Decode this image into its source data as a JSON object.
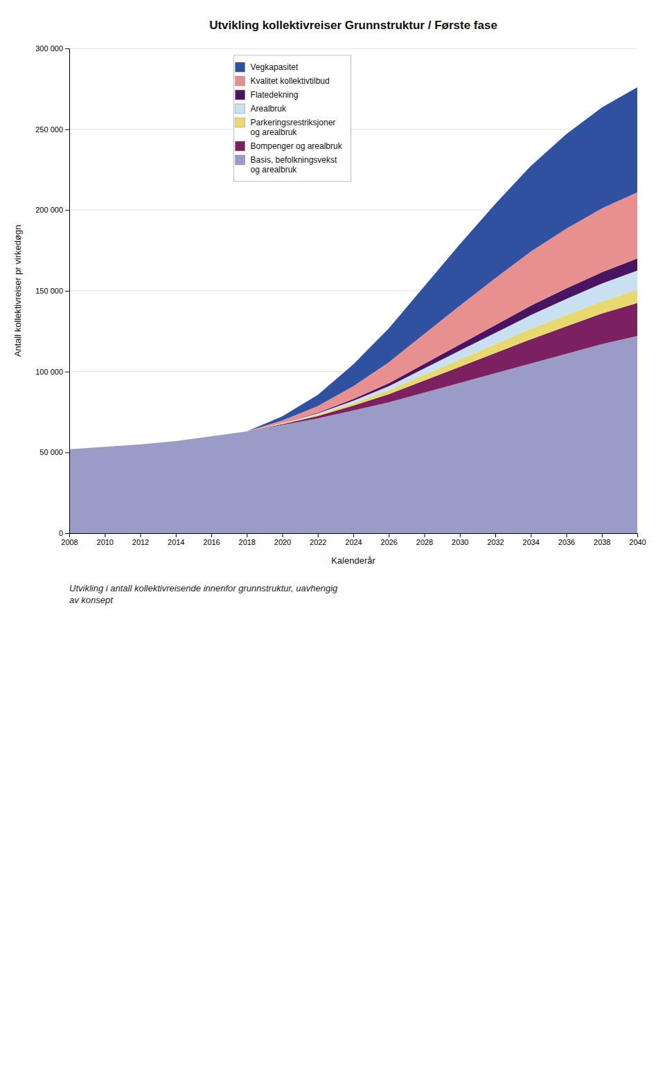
{
  "chart_data": {
    "type": "area",
    "stacked": true,
    "title": "Utvikling kollektivreiser Grunnstruktur / Første fase",
    "x_label": "Kalenderår",
    "y_label": "Antall kollektivreiser pr virkedøgn",
    "annotations": [
      "Utvikling i antall kollektivreisende innenfor grunnstruktur, uavhengig\nav konsept"
    ],
    "x": [
      2008,
      2010,
      2012,
      2014,
      2016,
      2018,
      2020,
      2022,
      2024,
      2026,
      2028,
      2030,
      2032,
      2034,
      2036,
      2038,
      2040
    ],
    "series": [
      {
        "name": "Basis, befolkningsvekst\nog arealbruk",
        "color": "#9b9bc8",
        "values": [
          52000,
          53500,
          55000,
          57000,
          60000,
          63000,
          67000,
          71000,
          76000,
          81000,
          87000,
          93000,
          99000,
          105000,
          111000,
          117000,
          122000
        ]
      },
      {
        "name": "Bompenger og arealbruk",
        "color": "#7b2060",
        "values": [
          0,
          0,
          0,
          0,
          0,
          0,
          500,
          1500,
          3000,
          5000,
          7500,
          10000,
          12500,
          15000,
          17000,
          19000,
          20500
        ]
      },
      {
        "name": "Parkeringsrestriksjoner\nog arealbruk",
        "color": "#e8d870",
        "values": [
          0,
          0,
          0,
          0,
          0,
          0,
          300,
          800,
          1500,
          2500,
          3500,
          4500,
          5500,
          6500,
          7000,
          7500,
          8000
        ]
      },
      {
        "name": "Arealbruk",
        "color": "#c8e0f0",
        "values": [
          0,
          0,
          0,
          0,
          0,
          0,
          300,
          800,
          1500,
          2500,
          4000,
          5500,
          7000,
          8500,
          10000,
          11000,
          12000
        ]
      },
      {
        "name": "Flatedekning",
        "color": "#4a1560",
        "values": [
          0,
          0,
          0,
          0,
          0,
          0,
          200,
          500,
          1000,
          1800,
          2800,
          3800,
          4800,
          5800,
          6500,
          7000,
          7500
        ]
      },
      {
        "name": "Kvalitet kollektivtilbud",
        "color": "#e89090",
        "values": [
          0,
          0,
          0,
          0,
          0,
          0,
          1500,
          4000,
          8000,
          13000,
          18500,
          24000,
          29000,
          33500,
          37000,
          39500,
          41000
        ]
      },
      {
        "name": "Vegkapasitet",
        "color": "#3050a0",
        "values": [
          0,
          0,
          0,
          0,
          0,
          0,
          2500,
          7000,
          13500,
          21000,
          29500,
          38000,
          46000,
          53000,
          58500,
          62500,
          65000
        ]
      }
    ],
    "xlim": [
      2008,
      2040
    ],
    "xticks": [
      2008,
      2010,
      2012,
      2014,
      2016,
      2018,
      2020,
      2022,
      2024,
      2026,
      2028,
      2030,
      2032,
      2034,
      2036,
      2038,
      2040
    ],
    "ylim": [
      0,
      300000
    ],
    "yticks": [
      0,
      {
        "value": 50000,
        "label": "50 000"
      },
      {
        "value": 100000,
        "label": "100 000"
      },
      {
        "value": 150000,
        "label": "150 000"
      },
      {
        "value": 200000,
        "label": "200 000"
      },
      {
        "value": 250000,
        "label": "250 000"
      },
      {
        "value": 300000,
        "label": "300 000"
      }
    ],
    "grid": "y",
    "legend": "upper left"
  }
}
